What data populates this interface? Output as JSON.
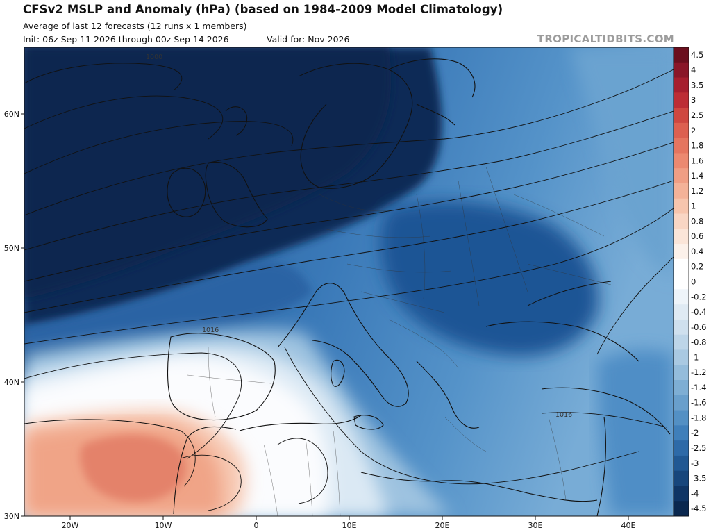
{
  "header": {
    "title": "CFSv2 MSLP and Anomaly (hPa) (based on 1984-2009 Model Climatology)",
    "subtitle": "Average of last 12 forecasts (12 runs x 1 members)",
    "init": "Init: 06z Sep 11 2026 through 00z Sep 14 2026",
    "valid": "Valid for: Nov 2026",
    "brand": "TROPICALTIDBITS.COM"
  },
  "map": {
    "lat_labels": [
      "60N",
      "50N",
      "40N",
      "30N"
    ],
    "lon_labels": [
      "20W",
      "10W",
      "0",
      "10E",
      "20E",
      "30E",
      "40E"
    ],
    "isobar_labels": [
      "1000",
      "1016",
      "1016"
    ]
  },
  "colorbar": {
    "labels": [
      "4.5",
      "4",
      "3.5",
      "3",
      "2.5",
      "2",
      "1.8",
      "1.6",
      "1.4",
      "1.2",
      "1",
      "0.8",
      "0.6",
      "0.4",
      "0.2",
      "0",
      "-0.2",
      "-0.4",
      "-0.6",
      "-0.8",
      "-1",
      "-1.2",
      "-1.4",
      "-1.6",
      "-1.8",
      "-2",
      "-2.5",
      "-3",
      "-3.5",
      "-4",
      "-4.5"
    ],
    "colors": [
      "#6b0f1e",
      "#8a1628",
      "#a61e2e",
      "#bd2d35",
      "#cf4740",
      "#dd6050",
      "#e5755f",
      "#ec8970",
      "#f09e84",
      "#f4b298",
      "#f7c5ad",
      "#f9d6c4",
      "#fbe5d8",
      "#fcf1ea",
      "#ffffff",
      "#ffffff",
      "#eef4f9",
      "#dfeaf3",
      "#cfe0ee",
      "#bdd5e8",
      "#a9c9e2",
      "#94bcdb",
      "#7eaed4",
      "#699fcc",
      "#5390c4",
      "#3f7fba",
      "#2e6aa8",
      "#215893",
      "#17467c",
      "#0f3565",
      "#0a284f"
    ]
  }
}
